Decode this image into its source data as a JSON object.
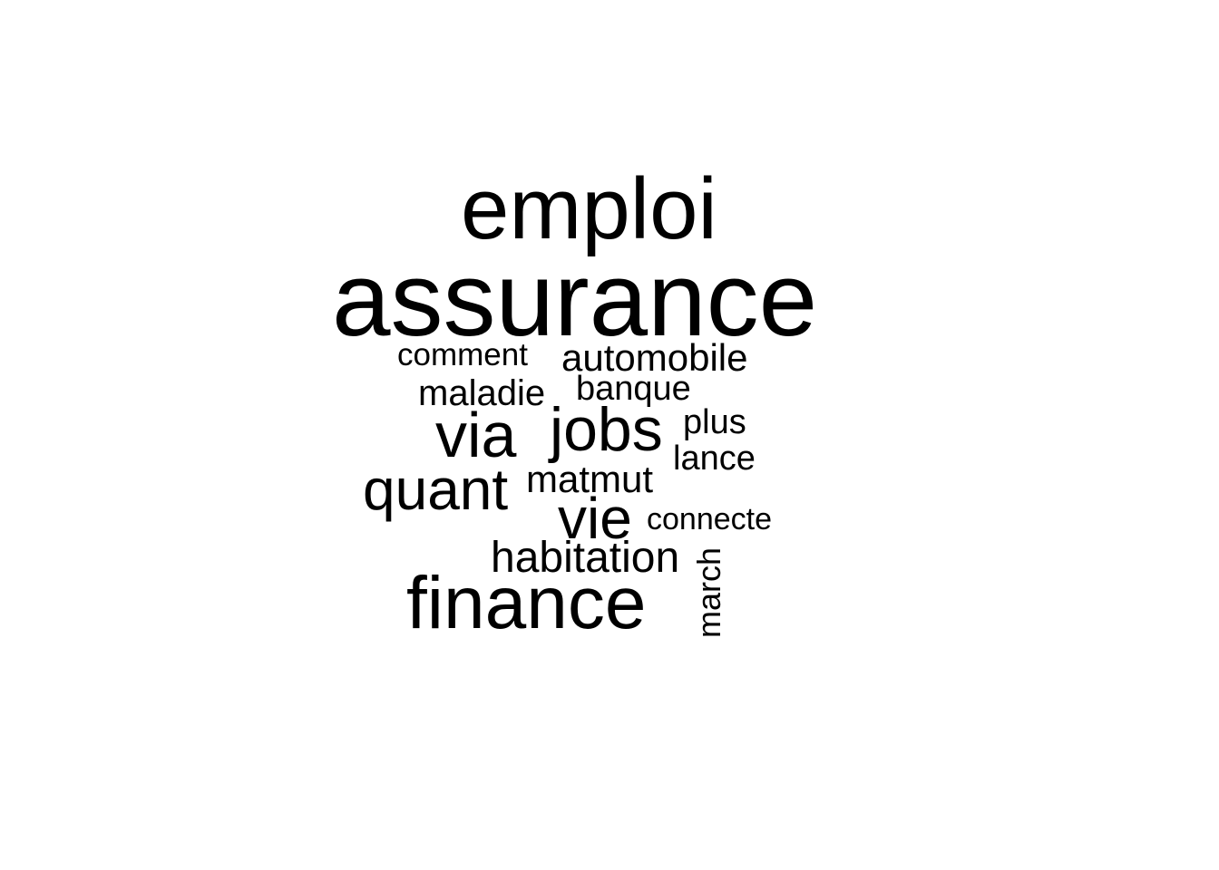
{
  "word_cloud": {
    "text_color": "#000000",
    "background": "#ffffff",
    "words": [
      {
        "id": "emploi",
        "text": "emploi"
      },
      {
        "id": "assurance",
        "text": "assurance"
      },
      {
        "id": "comment",
        "text": "comment"
      },
      {
        "id": "automobile",
        "text": "automobile"
      },
      {
        "id": "maladie",
        "text": "maladie"
      },
      {
        "id": "banque",
        "text": "banque"
      },
      {
        "id": "via",
        "text": "via"
      },
      {
        "id": "jobs",
        "text": "jobs"
      },
      {
        "id": "plus",
        "text": "plus"
      },
      {
        "id": "lance",
        "text": "lance"
      },
      {
        "id": "quant",
        "text": "quant"
      },
      {
        "id": "matmut",
        "text": "matmut"
      },
      {
        "id": "vie",
        "text": "vie"
      },
      {
        "id": "connecte",
        "text": "connecte"
      },
      {
        "id": "habitation",
        "text": "habitation"
      },
      {
        "id": "march",
        "text": "march"
      },
      {
        "id": "finance",
        "text": "finance"
      }
    ]
  }
}
